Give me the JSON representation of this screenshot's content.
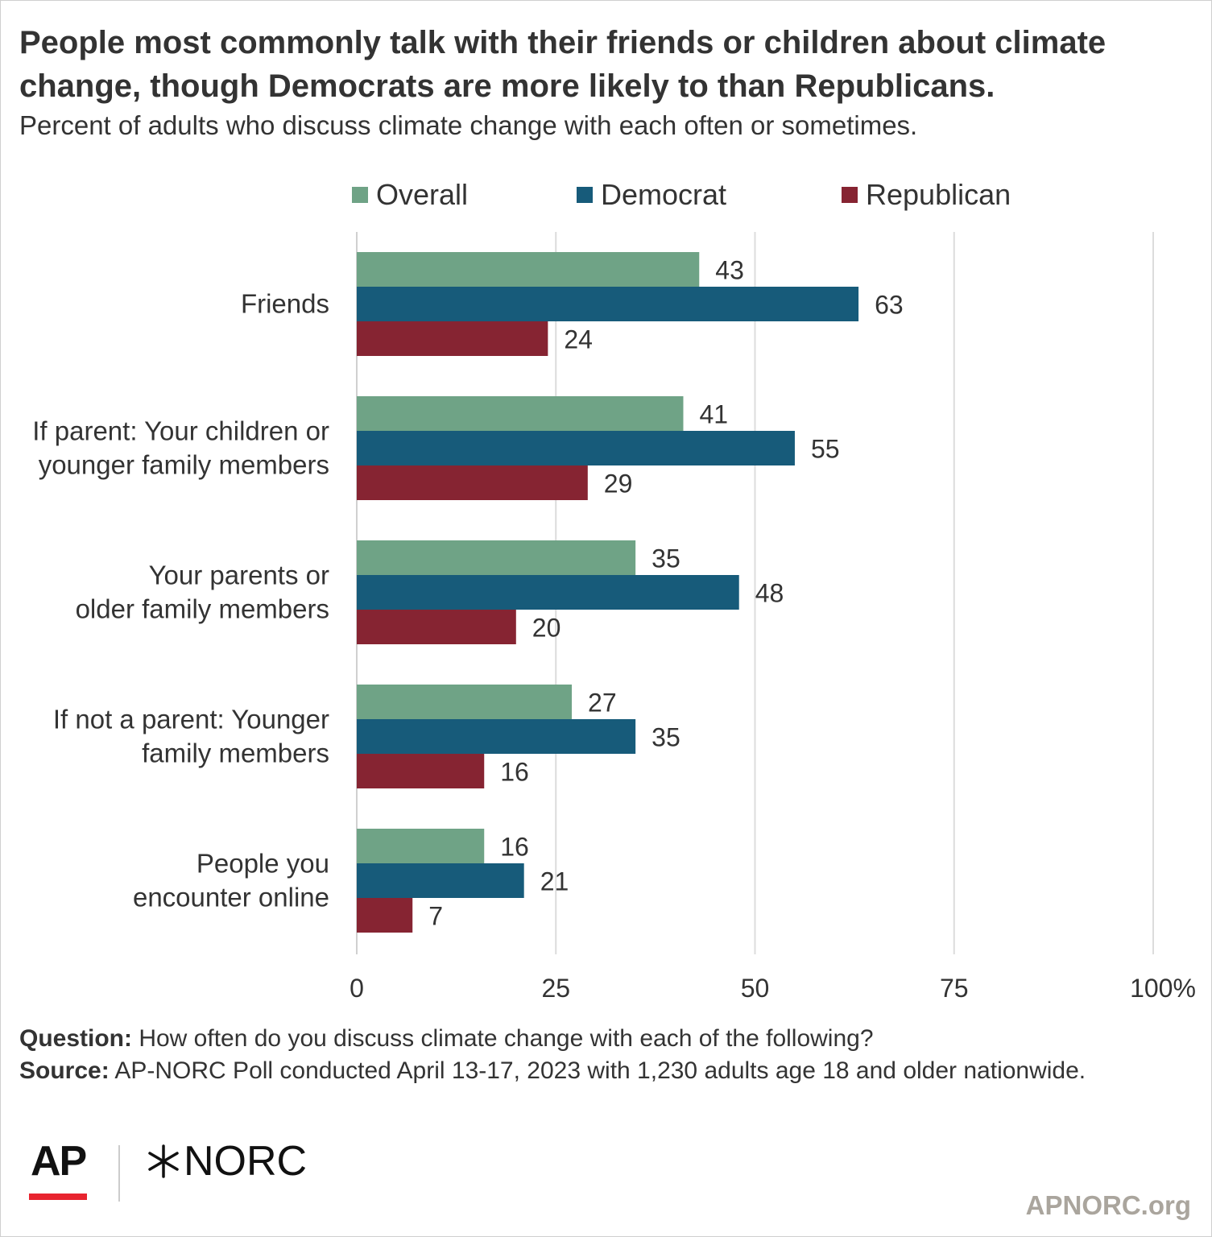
{
  "title": "People most commonly talk with their friends or children about climate change, though Democrats are more likely to than Republicans.",
  "subtitle": "Percent of adults who discuss climate change with each often or sometimes.",
  "chart_data": {
    "type": "bar",
    "orientation": "horizontal",
    "categories": [
      [
        "Friends"
      ],
      [
        "If parent: Your children or",
        "younger family members"
      ],
      [
        "Your parents or",
        "older family members"
      ],
      [
        "If not a parent: Younger",
        "family members"
      ],
      [
        "People you",
        "encounter online"
      ]
    ],
    "series": [
      {
        "name": "Overall",
        "color": "#6fa386",
        "values": [
          43,
          41,
          35,
          27,
          16
        ]
      },
      {
        "name": "Democrat",
        "color": "#175b7a",
        "values": [
          63,
          55,
          48,
          35,
          21
        ]
      },
      {
        "name": "Republican",
        "color": "#862432",
        "values": [
          24,
          29,
          20,
          16,
          7
        ]
      }
    ],
    "xlim": [
      0,
      100
    ],
    "xticks": [
      "0",
      "25",
      "50",
      "75",
      "100%"
    ],
    "xtick_values": [
      0,
      25,
      50,
      75,
      100
    ],
    "grid": true,
    "legend_position": "top",
    "data_labels": true
  },
  "notes": {
    "question_label": "Question:",
    "question_text": " How often do you discuss climate change with each of the following?",
    "source_label": "Source:",
    "source_text": " AP-NORC Poll conducted April 13-17, 2023 with 1,230 adults age 18 and older nationwide."
  },
  "logos": {
    "ap": "AP",
    "norc": "NORC",
    "site": "APNORC.org"
  },
  "colors": {
    "gridline": "#dcdcdc",
    "axis": "#d0d0d0",
    "text": "#333333"
  }
}
